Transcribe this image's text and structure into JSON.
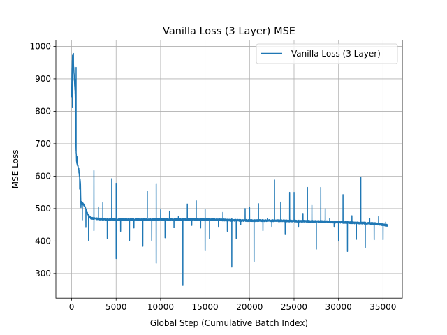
{
  "chart_data": {
    "type": "line",
    "title": "Vanilla Loss (3 Layer) MSE",
    "xlabel": "Global Step (Cumulative Batch Index)",
    "ylabel": "MSE Loss",
    "xlim": [
      -1770,
      37170
    ],
    "ylim": [
      224,
      1019
    ],
    "grid": true,
    "legend_position": "top-right",
    "x_ticks": [
      0,
      5000,
      10000,
      15000,
      20000,
      25000,
      30000,
      35000
    ],
    "x_tick_labels": [
      "0",
      "5000",
      "10000",
      "15000",
      "20000",
      "25000",
      "30000",
      "35000"
    ],
    "y_ticks": [
      300,
      400,
      500,
      600,
      700,
      800,
      900,
      1000
    ],
    "y_tick_labels": [
      "300",
      "400",
      "500",
      "600",
      "700",
      "800",
      "900",
      "1000"
    ],
    "series": [
      {
        "name": "Vanilla Loss (3 Layer)",
        "color": "#1f77b4",
        "baseline": [
          [
            0,
            850
          ],
          [
            50,
            930
          ],
          [
            100,
            970
          ],
          [
            150,
            960
          ],
          [
            200,
            950
          ],
          [
            250,
            925
          ],
          [
            300,
            900
          ],
          [
            350,
            880
          ],
          [
            400,
            850
          ],
          [
            450,
            760
          ],
          [
            500,
            680
          ],
          [
            550,
            650
          ],
          [
            600,
            640
          ],
          [
            700,
            630
          ],
          [
            800,
            620
          ],
          [
            900,
            600
          ],
          [
            1000,
            570
          ],
          [
            1050,
            510
          ],
          [
            1100,
            520
          ],
          [
            1300,
            515
          ],
          [
            1500,
            505
          ],
          [
            1700,
            490
          ],
          [
            1900,
            478
          ],
          [
            2200,
            470
          ],
          [
            3000,
            468
          ],
          [
            4000,
            467
          ],
          [
            5000,
            466
          ],
          [
            6000,
            466
          ],
          [
            7000,
            466
          ],
          [
            8000,
            466
          ],
          [
            10000,
            466
          ],
          [
            12000,
            466
          ],
          [
            14000,
            467
          ],
          [
            16000,
            466
          ],
          [
            18000,
            464
          ],
          [
            20000,
            463
          ],
          [
            22000,
            463
          ],
          [
            24000,
            462
          ],
          [
            26000,
            461
          ],
          [
            28000,
            460
          ],
          [
            30000,
            458
          ],
          [
            32000,
            456
          ],
          [
            34000,
            454
          ],
          [
            35000,
            450
          ],
          [
            35500,
            448
          ]
        ],
        "spikes": [
          [
            2500,
            617
          ],
          [
            2500,
            432
          ],
          [
            3000,
            505
          ],
          [
            3500,
            518
          ],
          [
            4000,
            408
          ],
          [
            4500,
            592
          ],
          [
            5000,
            346
          ],
          [
            5000,
            578
          ],
          [
            5500,
            430
          ],
          [
            6000,
            470
          ],
          [
            6500,
            402
          ],
          [
            7000,
            440
          ],
          [
            7500,
            470
          ],
          [
            8000,
            384
          ],
          [
            8500,
            553
          ],
          [
            9000,
            402
          ],
          [
            9500,
            332
          ],
          [
            9500,
            577
          ],
          [
            10000,
            496
          ],
          [
            10500,
            410
          ],
          [
            11000,
            492
          ],
          [
            11500,
            442
          ],
          [
            12000,
            475
          ],
          [
            12500,
            263
          ],
          [
            12500,
            417
          ],
          [
            13000,
            514
          ],
          [
            13500,
            448
          ],
          [
            14000,
            524
          ],
          [
            14500,
            440
          ],
          [
            15000,
            372
          ],
          [
            15000,
            497
          ],
          [
            15500,
            407
          ],
          [
            16000,
            470
          ],
          [
            16500,
            445
          ],
          [
            17000,
            488
          ],
          [
            17500,
            430
          ],
          [
            18000,
            320
          ],
          [
            18000,
            470
          ],
          [
            18500,
            408
          ],
          [
            19000,
            450
          ],
          [
            19500,
            500
          ],
          [
            20000,
            503
          ],
          [
            20500,
            337
          ],
          [
            21000,
            515
          ],
          [
            21500,
            432
          ],
          [
            22000,
            470
          ],
          [
            22500,
            445
          ],
          [
            22800,
            588
          ],
          [
            23500,
            520
          ],
          [
            24000,
            420
          ],
          [
            24500,
            550
          ],
          [
            25000,
            550
          ],
          [
            25500,
            445
          ],
          [
            26000,
            485
          ],
          [
            26500,
            565
          ],
          [
            27000,
            510
          ],
          [
            27500,
            375
          ],
          [
            28000,
            565
          ],
          [
            28500,
            500
          ],
          [
            29000,
            470
          ],
          [
            29500,
            445
          ],
          [
            30000,
            400
          ],
          [
            30500,
            543
          ],
          [
            31000,
            368
          ],
          [
            31500,
            478
          ],
          [
            32000,
            405
          ],
          [
            32500,
            596
          ],
          [
            33000,
            380
          ],
          [
            33500,
            470
          ],
          [
            34000,
            404
          ],
          [
            34500,
            475
          ],
          [
            35000,
            404
          ],
          [
            35300,
            458
          ]
        ],
        "early_spikes": [
          [
            80,
            811
          ],
          [
            120,
            820
          ],
          [
            200,
            978
          ],
          [
            380,
            900
          ],
          [
            500,
            935
          ],
          [
            600,
            660
          ],
          [
            900,
            560
          ],
          [
            1200,
            465
          ],
          [
            1600,
            444
          ],
          [
            1900,
            402
          ]
        ]
      }
    ]
  }
}
